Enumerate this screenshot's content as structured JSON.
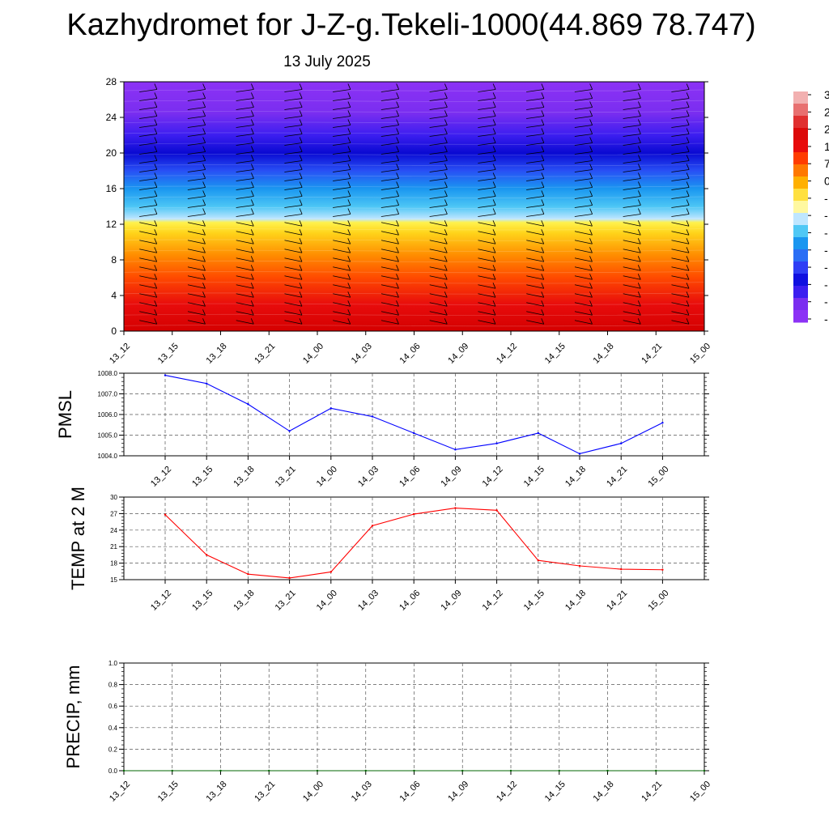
{
  "header": {
    "title": "Kazhydromet for J-Z-g.Tekeli-1000(44.869 78.747)",
    "subtitle": "13 July 2025"
  },
  "time_labels": [
    "13_12",
    "13_15",
    "13_18",
    "13_21",
    "14_00",
    "14_03",
    "14_06",
    "14_09",
    "14_12",
    "14_15",
    "14_18",
    "14_21",
    "15_00"
  ],
  "colors": {
    "pmsl": "#0000ff",
    "temp": "#ff0000",
    "precip": "#006400",
    "grid": "#555555",
    "barb": "#000000"
  },
  "chart_data": [
    {
      "type": "heatmap",
      "name": "cross-section",
      "x": [
        "13_12",
        "13_15",
        "13_18",
        "13_21",
        "14_00",
        "14_03",
        "14_06",
        "14_09",
        "14_12",
        "14_15",
        "14_18",
        "14_21",
        "15_00"
      ],
      "yticks": [
        0,
        4,
        8,
        12,
        16,
        20,
        24,
        28
      ],
      "ylim": [
        0,
        28
      ],
      "profile": [
        {
          "y": 0,
          "color": "#d40000"
        },
        {
          "y": 3,
          "color": "#e80c0c"
        },
        {
          "y": 6,
          "color": "#ff4a00"
        },
        {
          "y": 8.5,
          "color": "#ff8c00"
        },
        {
          "y": 11,
          "color": "#ffd31a"
        },
        {
          "y": 12.2,
          "color": "#fff24d"
        },
        {
          "y": 12.6,
          "color": "#bfe6ff"
        },
        {
          "y": 14,
          "color": "#4cc6f5"
        },
        {
          "y": 16,
          "color": "#1a96f0"
        },
        {
          "y": 18,
          "color": "#2850f5"
        },
        {
          "y": 20,
          "color": "#0a0ad2"
        },
        {
          "y": 22,
          "color": "#3c1ef0"
        },
        {
          "y": 24.5,
          "color": "#7a2ef0"
        },
        {
          "y": 28,
          "color": "#8c32f5"
        }
      ],
      "wind_barbs": "present",
      "colorbar_labels": [
        "3",
        "2",
        "2",
        "1",
        "7",
        "0",
        "-",
        "-",
        "-",
        "-",
        "-",
        "-",
        "-",
        "-"
      ],
      "colorbar_colors": [
        "#f2b0b0",
        "#e87070",
        "#e03030",
        "#dc0a0a",
        "#e80c0c",
        "#ff3c00",
        "#ff7800",
        "#ffb000",
        "#ffe040",
        "#fff8a0",
        "#bfe6ff",
        "#50c8f5",
        "#1a96f0",
        "#2a6ef5",
        "#2e3ef5",
        "#1010e0",
        "#3c1ef0",
        "#7a2ef0",
        "#8c32f5"
      ]
    },
    {
      "type": "line",
      "name": "pmsl",
      "ylabel": "PMSL",
      "x": [
        "13_12",
        "13_15",
        "13_18",
        "13_21",
        "14_00",
        "14_03",
        "14_06",
        "14_09",
        "14_12",
        "14_15",
        "14_18",
        "14_21",
        "15_00"
      ],
      "values": [
        1007.9,
        1007.5,
        1006.5,
        1005.2,
        1006.3,
        1005.9,
        1005.1,
        1004.3,
        1004.6,
        1005.1,
        1004.1,
        1004.6,
        1005.6
      ],
      "ylim": [
        1004.0,
        1008.0
      ],
      "yticks": [
        "1004.0",
        "1005.0",
        "1006.0",
        "1007.0",
        "1008.0"
      ],
      "grid": true
    },
    {
      "type": "line",
      "name": "temp",
      "ylabel": "TEMP at 2 M",
      "x": [
        "13_12",
        "13_15",
        "13_18",
        "13_21",
        "14_00",
        "14_03",
        "14_06",
        "14_09",
        "14_12",
        "14_15",
        "14_18",
        "14_21",
        "15_00"
      ],
      "values": [
        26.8,
        19.5,
        16.0,
        15.3,
        16.4,
        24.8,
        26.9,
        28.0,
        27.6,
        18.5,
        17.5,
        16.9,
        16.8
      ],
      "ylim": [
        15,
        30
      ],
      "yticks": [
        "15",
        "18",
        "21",
        "24",
        "27",
        "30"
      ],
      "grid": true
    },
    {
      "type": "line",
      "name": "precip",
      "ylabel": "PRECIP, mm",
      "x": [
        "13_12",
        "13_15",
        "13_18",
        "13_21",
        "14_00",
        "14_03",
        "14_06",
        "14_09",
        "14_12",
        "14_15",
        "14_18",
        "14_21",
        "15_00"
      ],
      "values": [
        0,
        0,
        0,
        0,
        0,
        0,
        0,
        0,
        0,
        0,
        0,
        0,
        0
      ],
      "ylim": [
        0.0,
        1.0
      ],
      "yticks": [
        "0.0",
        "0.2",
        "0.4",
        "0.6",
        "0.8",
        "1.0"
      ],
      "grid": true
    }
  ]
}
